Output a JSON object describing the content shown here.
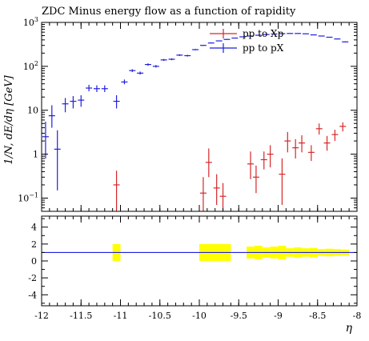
{
  "chart_data": {
    "type": "scatter",
    "title": "ZDC Minus energy flow as a function of rapidity",
    "xlabel": "η",
    "ylabel": "1/N, dE/dη [GeV]",
    "xlim": [
      -12,
      -8
    ],
    "ylim_main": [
      0.05,
      1000
    ],
    "yscale_main": "log",
    "ylim_ratio": [
      -5.3,
      5.3
    ],
    "legend_position": "top-right",
    "x_ticks": [
      {
        "value": -12,
        "label": "-12"
      },
      {
        "value": -11.5,
        "label": "-11.5"
      },
      {
        "value": -11,
        "label": "-11"
      },
      {
        "value": -10.5,
        "label": "-10.5"
      },
      {
        "value": -10,
        "label": "-10"
      },
      {
        "value": -9.5,
        "label": "-9.5"
      },
      {
        "value": -9,
        "label": "-9"
      },
      {
        "value": -8.5,
        "label": "-8.5"
      },
      {
        "value": -8,
        "label": "-8"
      }
    ],
    "y_ticks_main": [
      {
        "value": 0.1,
        "base": "10",
        "exp": "−1"
      },
      {
        "value": 1,
        "label": "1"
      },
      {
        "value": 10,
        "base": "10",
        "exp": ""
      },
      {
        "value": 100,
        "base": "10",
        "exp": "2"
      },
      {
        "value": 1000,
        "base": "10",
        "exp": "3"
      }
    ],
    "y_ticks_ratio": [
      {
        "value": 4,
        "label": "4"
      },
      {
        "value": 2,
        "label": "2"
      },
      {
        "value": 0,
        "label": "0"
      },
      {
        "value": -2,
        "label": "-2"
      },
      {
        "value": -4,
        "label": "-4"
      }
    ],
    "ratio_reference": 1,
    "series": [
      {
        "name": "pp to Xp",
        "color": "#d62728",
        "points": [
          {
            "x": -11.05,
            "y": 0.2,
            "lo": 0.05,
            "hi": 0.42
          },
          {
            "x": -9.95,
            "y": 0.13,
            "lo": 0.05,
            "hi": 0.3
          },
          {
            "x": -9.88,
            "y": 0.65,
            "lo": 0.3,
            "hi": 1.35
          },
          {
            "x": -9.78,
            "y": 0.17,
            "lo": 0.07,
            "hi": 0.35
          },
          {
            "x": -9.7,
            "y": 0.11,
            "lo": 0.05,
            "hi": 0.22
          },
          {
            "x": -9.35,
            "y": 0.6,
            "lo": 0.27,
            "hi": 1.15
          },
          {
            "x": -9.28,
            "y": 0.3,
            "lo": 0.13,
            "hi": 0.55
          },
          {
            "x": -9.18,
            "y": 0.75,
            "lo": 0.45,
            "hi": 1.15
          },
          {
            "x": -9.1,
            "y": 1.0,
            "lo": 0.5,
            "hi": 1.6
          },
          {
            "x": -8.95,
            "y": 0.35,
            "lo": 0.07,
            "hi": 0.8
          },
          {
            "x": -8.88,
            "y": 2.0,
            "lo": 1.1,
            "hi": 3.2
          },
          {
            "x": -8.78,
            "y": 1.4,
            "lo": 0.8,
            "hi": 2.2
          },
          {
            "x": -8.7,
            "y": 1.8,
            "lo": 1.1,
            "hi": 2.7
          },
          {
            "x": -8.58,
            "y": 1.1,
            "lo": 0.7,
            "hi": 1.6
          },
          {
            "x": -8.48,
            "y": 3.8,
            "lo": 2.8,
            "hi": 5.0
          },
          {
            "x": -8.38,
            "y": 1.8,
            "lo": 1.2,
            "hi": 2.6
          },
          {
            "x": -8.28,
            "y": 2.8,
            "lo": 2.0,
            "hi": 3.6
          },
          {
            "x": -8.18,
            "y": 4.3,
            "lo": 3.3,
            "hi": 5.3
          }
        ]
      },
      {
        "name": "pp to pX",
        "color": "#1f1fe0",
        "points": [
          {
            "x": -11.95,
            "y": 2.5,
            "lo": 0.8,
            "hi": 5.5
          },
          {
            "x": -11.87,
            "y": 7.5,
            "lo": 4.0,
            "hi": 13
          },
          {
            "x": -11.8,
            "y": 1.3,
            "lo": 0.15,
            "hi": 3.5
          },
          {
            "x": -11.7,
            "y": 14,
            "lo": 9,
            "hi": 19
          },
          {
            "x": -11.6,
            "y": 16,
            "lo": 11,
            "hi": 21
          },
          {
            "x": -11.5,
            "y": 17,
            "lo": 12,
            "hi": 22
          },
          {
            "x": -11.4,
            "y": 32,
            "lo": 27,
            "hi": 38
          },
          {
            "x": -11.3,
            "y": 31,
            "lo": 26,
            "hi": 37
          },
          {
            "x": -11.2,
            "y": 31,
            "lo": 26,
            "hi": 37
          },
          {
            "x": -11.05,
            "y": 16,
            "lo": 11,
            "hi": 22
          },
          {
            "x": -10.95,
            "y": 44,
            "lo": 39,
            "hi": 50
          },
          {
            "x": -10.85,
            "y": 80,
            "lo": 74,
            "hi": 86
          },
          {
            "x": -10.75,
            "y": 70,
            "lo": 65,
            "hi": 76
          },
          {
            "x": -10.65,
            "y": 110,
            "lo": 103,
            "hi": 117
          },
          {
            "x": -10.55,
            "y": 100,
            "lo": 94,
            "hi": 107
          },
          {
            "x": -10.45,
            "y": 140,
            "lo": 133,
            "hi": 147
          },
          {
            "x": -10.35,
            "y": 145,
            "lo": 138,
            "hi": 152
          },
          {
            "x": -10.25,
            "y": 180,
            "lo": 172,
            "hi": 188
          },
          {
            "x": -10.15,
            "y": 175,
            "lo": 167,
            "hi": 183
          },
          {
            "x": -10.05,
            "y": 240,
            "lo": 232,
            "hi": 248
          },
          {
            "x": -9.95,
            "y": 300,
            "lo": 292,
            "hi": 308
          },
          {
            "x": -9.85,
            "y": 340,
            "lo": 332,
            "hi": 348
          },
          {
            "x": -9.75,
            "y": 380,
            "lo": 372,
            "hi": 388
          },
          {
            "x": -9.65,
            "y": 410,
            "lo": 402,
            "hi": 418
          },
          {
            "x": -9.55,
            "y": 440,
            "lo": 432,
            "hi": 448
          },
          {
            "x": -9.45,
            "y": 470,
            "lo": 462,
            "hi": 478
          },
          {
            "x": -9.35,
            "y": 490,
            "lo": 482,
            "hi": 498
          },
          {
            "x": -9.25,
            "y": 510,
            "lo": 502,
            "hi": 518
          },
          {
            "x": -9.15,
            "y": 530,
            "lo": 522,
            "hi": 538
          },
          {
            "x": -9.05,
            "y": 545,
            "lo": 537,
            "hi": 553
          },
          {
            "x": -8.95,
            "y": 555,
            "lo": 547,
            "hi": 563
          },
          {
            "x": -8.85,
            "y": 560,
            "lo": 552,
            "hi": 568
          },
          {
            "x": -8.75,
            "y": 560,
            "lo": 552,
            "hi": 568
          },
          {
            "x": -8.65,
            "y": 550,
            "lo": 542,
            "hi": 558
          },
          {
            "x": -8.55,
            "y": 520,
            "lo": 512,
            "hi": 528
          },
          {
            "x": -8.45,
            "y": 490,
            "lo": 482,
            "hi": 498
          },
          {
            "x": -8.35,
            "y": 460,
            "lo": 452,
            "hi": 468
          },
          {
            "x": -8.25,
            "y": 420,
            "lo": 412,
            "hi": 428
          },
          {
            "x": -8.15,
            "y": 360,
            "lo": 352,
            "hi": 368
          }
        ]
      }
    ],
    "ratio_band_color": "#ffff00",
    "ratio_band": [
      {
        "x0": -11.1,
        "x1": -11.0,
        "lo": 0.0,
        "hi": 2.0
      },
      {
        "x0": -10.0,
        "x1": -9.6,
        "lo": 0.0,
        "hi": 2.0
      },
      {
        "x0": -9.4,
        "x1": -9.3,
        "lo": 0.3,
        "hi": 1.7
      },
      {
        "x0": -9.3,
        "x1": -9.2,
        "lo": 0.2,
        "hi": 1.8
      },
      {
        "x0": -9.2,
        "x1": -9.1,
        "lo": 0.4,
        "hi": 1.6
      },
      {
        "x0": -9.1,
        "x1": -9.0,
        "lo": 0.3,
        "hi": 1.7
      },
      {
        "x0": -9.0,
        "x1": -8.9,
        "lo": 0.2,
        "hi": 1.8
      },
      {
        "x0": -8.9,
        "x1": -8.8,
        "lo": 0.5,
        "hi": 1.5
      },
      {
        "x0": -8.8,
        "x1": -8.7,
        "lo": 0.4,
        "hi": 1.6
      },
      {
        "x0": -8.7,
        "x1": -8.6,
        "lo": 0.5,
        "hi": 1.5
      },
      {
        "x0": -8.6,
        "x1": -8.5,
        "lo": 0.45,
        "hi": 1.55
      },
      {
        "x0": -8.5,
        "x1": -8.4,
        "lo": 0.6,
        "hi": 1.4
      },
      {
        "x0": -8.4,
        "x1": -8.3,
        "lo": 0.55,
        "hi": 1.45
      },
      {
        "x0": -8.3,
        "x1": -8.2,
        "lo": 0.6,
        "hi": 1.4
      },
      {
        "x0": -8.2,
        "x1": -8.1,
        "lo": 0.65,
        "hi": 1.35
      }
    ]
  }
}
